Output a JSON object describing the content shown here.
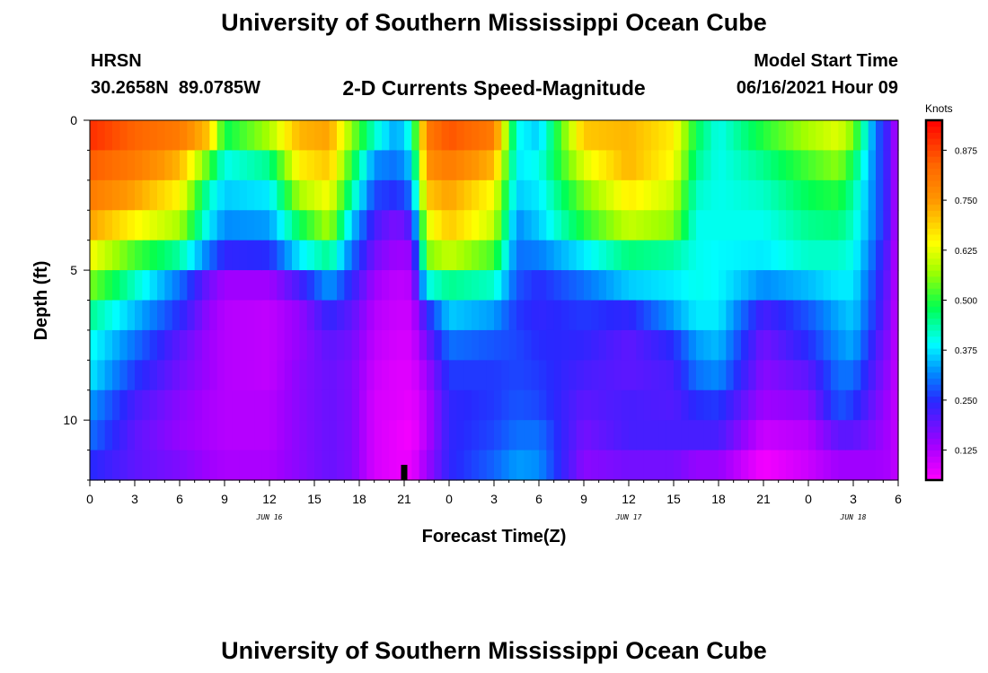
{
  "page": {
    "title_top": "University of Southern Mississippi Ocean Cube",
    "title_bottom": "University of Southern Mississippi Ocean Cube",
    "station": "HRSN",
    "coordinates": "30.2658N  89.0785W",
    "model_start_label": "Model Start Time",
    "model_start_value": "06/16/2021 Hour 09"
  },
  "chart_data": {
    "type": "heatmap",
    "title": "2-D Currents Speed-Magnitude",
    "xlabel": "Forecast Time(Z)",
    "ylabel": "Depth (ft)",
    "colorbar_label": "Knots",
    "colorbar_ticks": [
      "0.875",
      "0.750",
      "0.625",
      "0.500",
      "0.375",
      "0.250",
      "0.125"
    ],
    "colorbar_tick_values": [
      0.875,
      0.75,
      0.625,
      0.5,
      0.375,
      0.25,
      0.125
    ],
    "colorbar_range": [
      0.05,
      0.95
    ],
    "x_hours_range": [
      0,
      54
    ],
    "x_ticks": [
      "0",
      "3",
      "6",
      "9",
      "12",
      "15",
      "18",
      "21",
      "0",
      "3",
      "6",
      "9",
      "12",
      "15",
      "18",
      "21",
      "0",
      "3",
      "6"
    ],
    "date_labels": [
      {
        "text": "JUN 16",
        "hour": 12
      },
      {
        "text": "JUN 17",
        "hour": 36
      },
      {
        "text": "JUN 18",
        "hour": 51
      }
    ],
    "y_ticks": [
      "0",
      "5",
      "10"
    ],
    "y_tick_values": [
      0,
      5,
      10
    ],
    "ylim": [
      0,
      12
    ],
    "now_marker_hour": 21,
    "layer_depths_ft": [
      0.5,
      1.5,
      2.5,
      3.5,
      4.5,
      5.5,
      6.5,
      7.5,
      8.5,
      9.5,
      10.5,
      11.5
    ],
    "profile_hours": [
      0,
      3,
      6,
      8,
      9,
      12,
      14,
      16,
      17.5,
      19,
      20.5,
      21.5,
      22.5,
      24,
      27,
      28.5,
      30,
      33,
      36,
      39,
      40.5,
      42,
      45,
      48,
      50,
      51,
      52.5,
      53.5,
      54
    ],
    "speed_knots": [
      [
        0.9,
        0.85,
        0.8,
        0.74,
        0.64,
        0.55,
        0.45,
        0.4,
        0.38,
        0.33,
        0.3,
        0.25
      ],
      [
        0.84,
        0.8,
        0.74,
        0.65,
        0.52,
        0.42,
        0.35,
        0.3,
        0.26,
        0.22,
        0.2,
        0.2
      ],
      [
        0.8,
        0.72,
        0.65,
        0.58,
        0.44,
        0.3,
        0.25,
        0.2,
        0.18,
        0.16,
        0.15,
        0.17
      ],
      [
        0.7,
        0.52,
        0.42,
        0.38,
        0.3,
        0.18,
        0.15,
        0.14,
        0.14,
        0.13,
        0.13,
        0.14
      ],
      [
        0.48,
        0.4,
        0.36,
        0.32,
        0.24,
        0.14,
        0.12,
        0.12,
        0.12,
        0.12,
        0.12,
        0.13
      ],
      [
        0.58,
        0.45,
        0.38,
        0.33,
        0.25,
        0.14,
        0.11,
        0.11,
        0.11,
        0.12,
        0.12,
        0.13
      ],
      [
        0.72,
        0.66,
        0.58,
        0.48,
        0.38,
        0.22,
        0.15,
        0.15,
        0.16,
        0.16,
        0.16,
        0.16
      ],
      [
        0.74,
        0.7,
        0.64,
        0.58,
        0.45,
        0.33,
        0.24,
        0.2,
        0.19,
        0.19,
        0.19,
        0.19
      ],
      [
        0.56,
        0.5,
        0.44,
        0.36,
        0.3,
        0.24,
        0.2,
        0.18,
        0.17,
        0.17,
        0.17,
        0.17
      ],
      [
        0.42,
        0.32,
        0.27,
        0.22,
        0.18,
        0.14,
        0.12,
        0.11,
        0.1,
        0.09,
        0.09,
        0.09
      ],
      [
        0.33,
        0.3,
        0.25,
        0.17,
        0.14,
        0.11,
        0.1,
        0.09,
        0.08,
        0.08,
        0.07,
        0.07
      ],
      [
        0.42,
        0.36,
        0.3,
        0.22,
        0.15,
        0.12,
        0.1,
        0.09,
        0.08,
        0.07,
        0.06,
        0.07
      ],
      [
        0.8,
        0.76,
        0.7,
        0.62,
        0.55,
        0.4,
        0.24,
        0.18,
        0.14,
        0.12,
        0.12,
        0.14
      ],
      [
        0.86,
        0.8,
        0.74,
        0.7,
        0.6,
        0.45,
        0.36,
        0.3,
        0.26,
        0.24,
        0.24,
        0.24
      ],
      [
        0.8,
        0.72,
        0.64,
        0.6,
        0.52,
        0.42,
        0.33,
        0.28,
        0.26,
        0.26,
        0.27,
        0.29
      ],
      [
        0.4,
        0.38,
        0.36,
        0.32,
        0.3,
        0.28,
        0.26,
        0.27,
        0.27,
        0.28,
        0.3,
        0.33
      ],
      [
        0.36,
        0.4,
        0.38,
        0.36,
        0.31,
        0.25,
        0.24,
        0.25,
        0.26,
        0.27,
        0.3,
        0.32
      ],
      [
        0.7,
        0.62,
        0.55,
        0.5,
        0.38,
        0.3,
        0.26,
        0.24,
        0.22,
        0.2,
        0.18,
        0.16
      ],
      [
        0.72,
        0.72,
        0.66,
        0.6,
        0.46,
        0.36,
        0.24,
        0.2,
        0.2,
        0.22,
        0.22,
        0.18
      ],
      [
        0.66,
        0.64,
        0.6,
        0.56,
        0.44,
        0.38,
        0.33,
        0.25,
        0.22,
        0.21,
        0.22,
        0.18
      ],
      [
        0.48,
        0.45,
        0.42,
        0.4,
        0.4,
        0.4,
        0.38,
        0.33,
        0.3,
        0.25,
        0.22,
        0.15
      ],
      [
        0.4,
        0.4,
        0.4,
        0.4,
        0.39,
        0.39,
        0.38,
        0.35,
        0.32,
        0.26,
        0.22,
        0.15
      ],
      [
        0.5,
        0.45,
        0.42,
        0.4,
        0.38,
        0.32,
        0.22,
        0.18,
        0.16,
        0.14,
        0.1,
        0.06
      ],
      [
        0.58,
        0.52,
        0.48,
        0.45,
        0.42,
        0.35,
        0.28,
        0.25,
        0.2,
        0.16,
        0.12,
        0.1
      ],
      [
        0.62,
        0.56,
        0.5,
        0.46,
        0.42,
        0.38,
        0.34,
        0.32,
        0.3,
        0.28,
        0.2,
        0.14
      ],
      [
        0.55,
        0.48,
        0.44,
        0.42,
        0.4,
        0.38,
        0.36,
        0.34,
        0.3,
        0.26,
        0.2,
        0.14
      ],
      [
        0.3,
        0.3,
        0.3,
        0.3,
        0.28,
        0.26,
        0.25,
        0.22,
        0.2,
        0.18,
        0.16,
        0.14
      ],
      [
        0.2,
        0.2,
        0.2,
        0.2,
        0.18,
        0.17,
        0.16,
        0.15,
        0.14,
        0.13,
        0.13,
        0.13
      ],
      [
        0.1,
        0.1,
        0.1,
        0.1,
        0.1,
        0.1,
        0.1,
        0.1,
        0.1,
        0.1,
        0.1,
        0.1
      ]
    ]
  }
}
